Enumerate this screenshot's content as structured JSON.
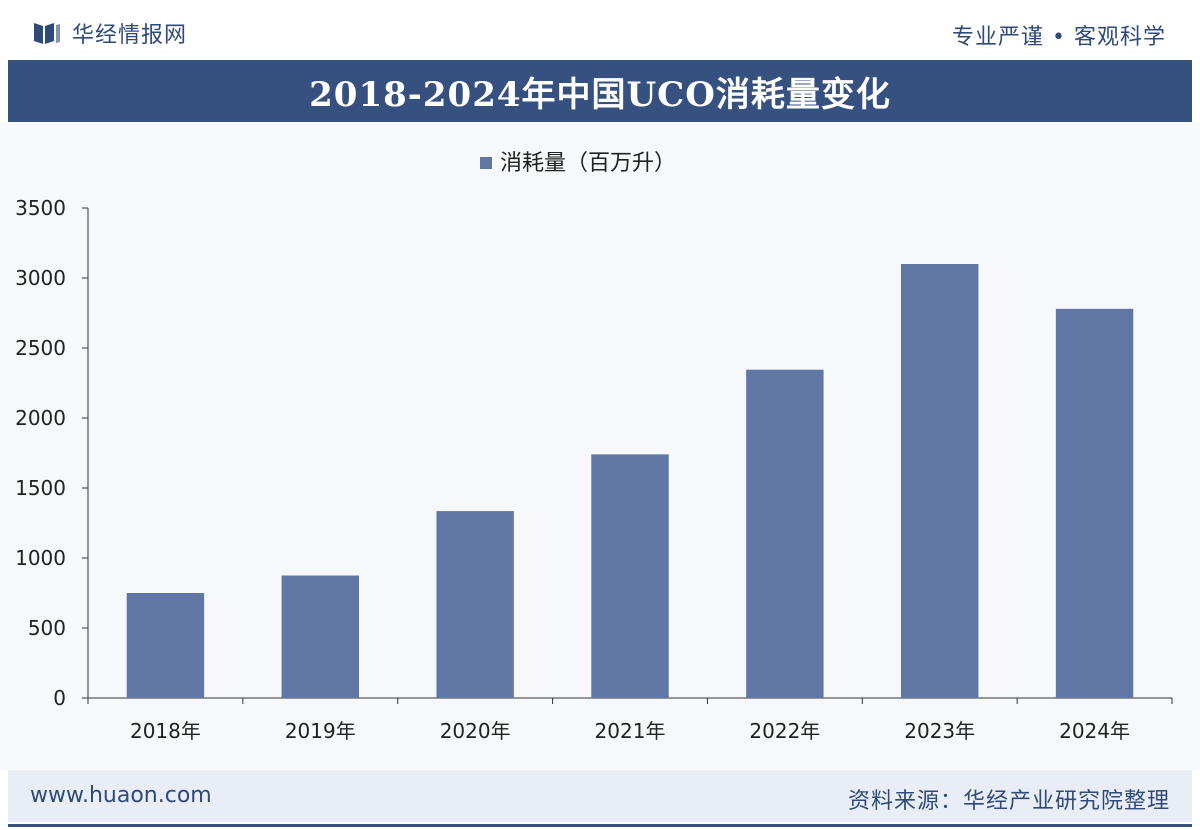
{
  "header": {
    "brand": "华经情报网",
    "slogan": "专业严谨 • 客观科学"
  },
  "footer": {
    "website": "www.huaon.com",
    "source": "资料来源：华经产业研究院整理"
  },
  "colors": {
    "bar": "#6077a6",
    "title_band": "#36507f",
    "brand_text": "#2f4a7a"
  },
  "icons": {
    "logo": "book-logo-icon"
  },
  "chart_data": {
    "type": "bar",
    "title": "2018-2024年中国UCO消耗量变化",
    "categories": [
      "2018年",
      "2019年",
      "2020年",
      "2021年",
      "2022年",
      "2023年",
      "2024年"
    ],
    "series": [
      {
        "name": "消耗量（百万升）",
        "values": [
          750,
          875,
          1335,
          1740,
          2345,
          3100,
          2780
        ]
      }
    ],
    "ylim": [
      0,
      3500
    ],
    "yticks": [
      0,
      500,
      1000,
      1500,
      2000,
      2500,
      3000,
      3500
    ],
    "xlabel": "",
    "ylabel": "",
    "legend": "top-center",
    "grid": false
  }
}
